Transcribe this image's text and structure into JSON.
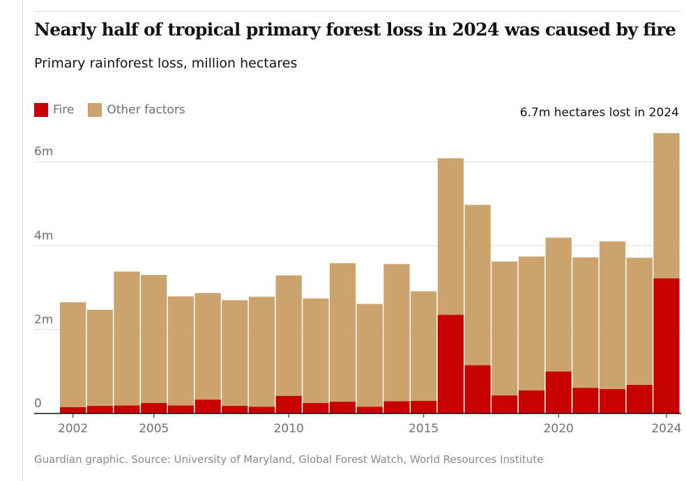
{
  "title": "Nearly half of tropical primary forest loss in 2024 was caused by fire",
  "subtitle": "Primary rainforest loss, million hectares",
  "legend": [
    {
      "label": "Fire",
      "color": "#c70000"
    },
    {
      "label": "Other factors",
      "color": "#cca36d"
    }
  ],
  "source": "Guardian graphic. Source: University of Maryland, Global Forest Watch, World Resources Institute",
  "chart_data": {
    "type": "bar",
    "stacked": true,
    "title": "Nearly half of tropical primary forest loss in 2024 was caused by fire",
    "ylabel": "Primary rainforest loss, million hectares",
    "ylim": [
      0,
      6.7
    ],
    "yticks": [
      0,
      2,
      4,
      6
    ],
    "ytick_labels": [
      "0",
      "2m",
      "4m",
      "6m"
    ],
    "xtick_years": [
      2002,
      2005,
      2010,
      2015,
      2020,
      2024
    ],
    "xtick_labels": [
      "2002",
      "2005",
      "2010",
      "2015",
      "2020",
      "2024"
    ],
    "categories": [
      2002,
      2003,
      2004,
      2005,
      2006,
      2007,
      2008,
      2009,
      2010,
      2011,
      2012,
      2013,
      2014,
      2015,
      2016,
      2017,
      2018,
      2019,
      2020,
      2021,
      2022,
      2023,
      2024
    ],
    "series": [
      {
        "name": "Fire",
        "color": "#c70000",
        "values": [
          0.15,
          0.18,
          0.19,
          0.25,
          0.19,
          0.33,
          0.18,
          0.16,
          0.42,
          0.25,
          0.28,
          0.16,
          0.29,
          0.3,
          2.35,
          1.15,
          0.43,
          0.55,
          1.0,
          0.61,
          0.58,
          0.68,
          3.22
        ]
      },
      {
        "name": "Other factors",
        "color": "#cca36d",
        "values": [
          2.5,
          2.29,
          3.19,
          3.05,
          2.6,
          2.54,
          2.52,
          2.62,
          2.87,
          2.49,
          3.3,
          2.45,
          3.27,
          2.61,
          3.73,
          3.82,
          3.19,
          3.19,
          3.19,
          3.11,
          3.52,
          3.03,
          3.46
        ]
      }
    ],
    "annotation": "6.7m hectares lost in 2024"
  }
}
